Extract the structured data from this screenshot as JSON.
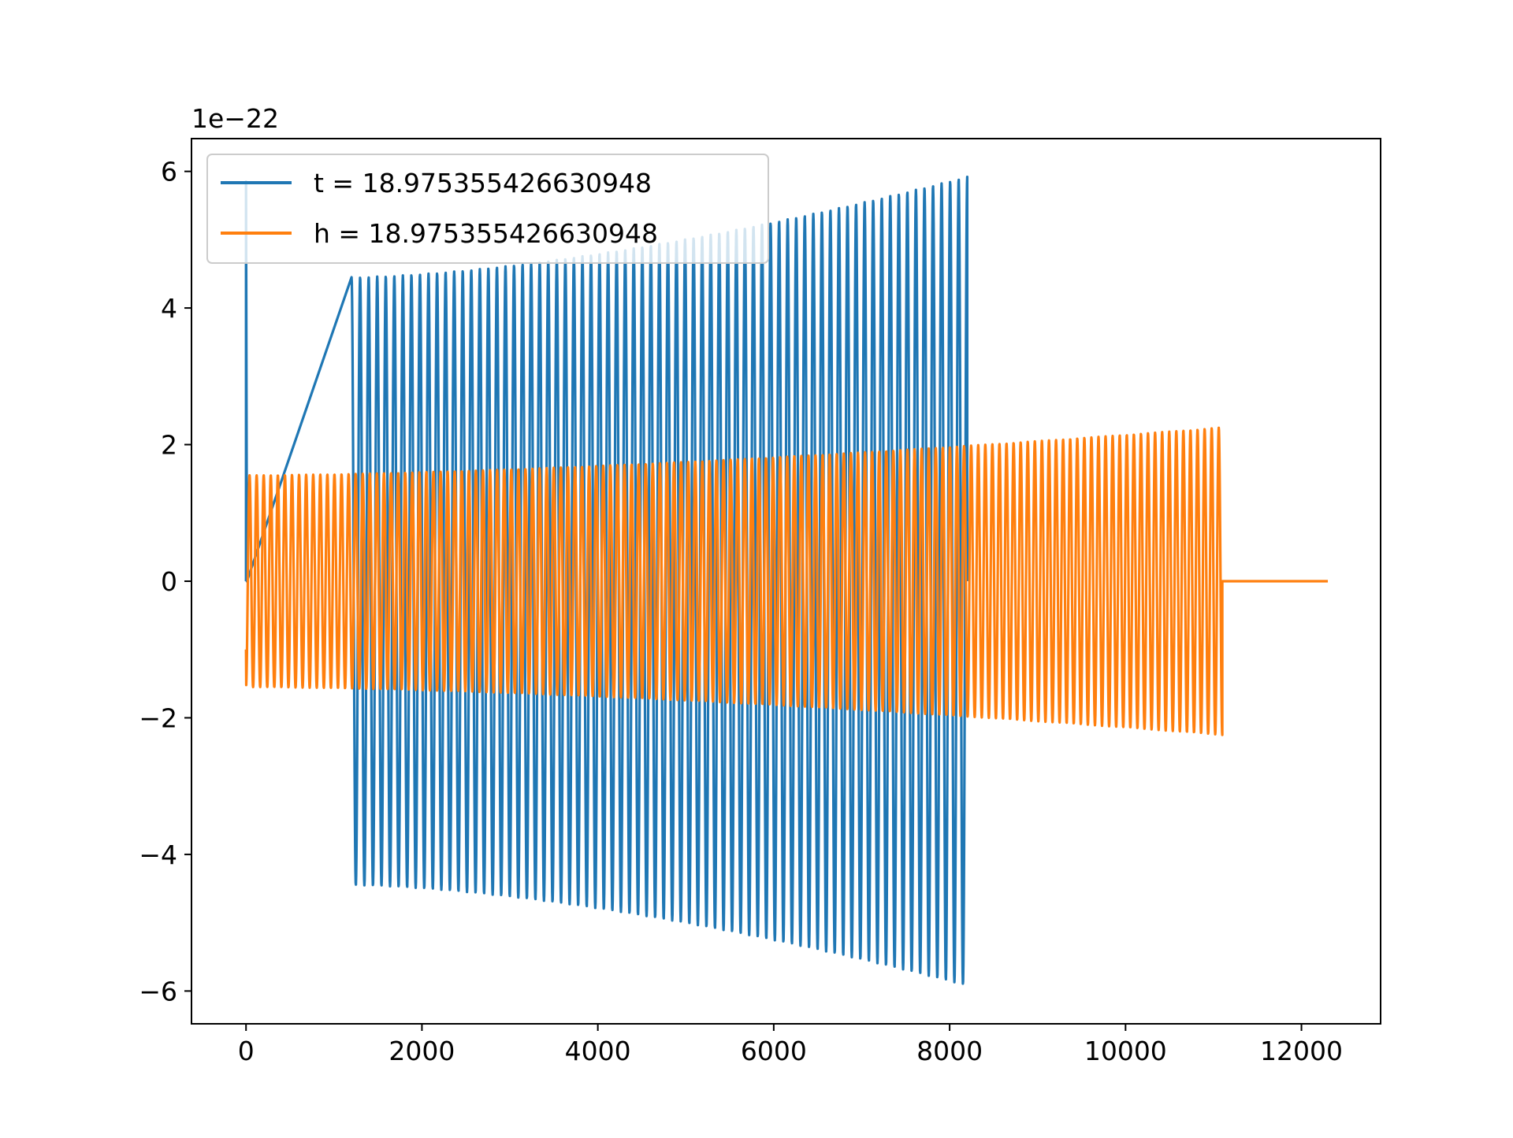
{
  "chart_data": {
    "type": "line",
    "title": "",
    "xlabel": "",
    "ylabel": "",
    "y_offset_label": "1e−22",
    "xlim": [
      -620,
      12900
    ],
    "ylim": [
      -6.48,
      6.48
    ],
    "x_ticks": [
      0,
      2000,
      4000,
      6000,
      8000,
      10000,
      12000
    ],
    "x_tick_labels": [
      "0",
      "2000",
      "4000",
      "6000",
      "8000",
      "10000",
      "12000"
    ],
    "y_ticks": [
      -6,
      -4,
      -2,
      0,
      2,
      4,
      6
    ],
    "y_tick_labels": [
      "−6",
      "−4",
      "−2",
      "0",
      "2",
      "4",
      "6"
    ],
    "grid": false,
    "legend_position": "top-left",
    "series": [
      {
        "name": "t = 18.975355426630948",
        "color": "#1f77b4",
        "description_values": {
          "spike_start": 0,
          "spike_peak": 5.85,
          "burst_start": 1200,
          "burst_end": 8200,
          "amplitude_start": 4.45,
          "amplitude_end": 5.92,
          "cycles": 72
        }
      },
      {
        "name": "h = 18.975355426630948",
        "color": "#ff7f0e",
        "description_values": {
          "start_x": 0,
          "start_value": -1.0,
          "burst_end": 11100,
          "amplitude_start": 1.55,
          "amplitude_end": 2.25,
          "flat_until": 12300,
          "cycles": 138
        }
      }
    ]
  }
}
